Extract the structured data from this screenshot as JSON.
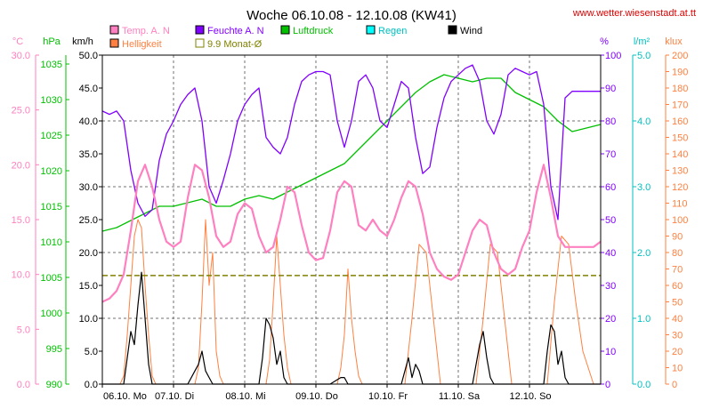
{
  "chart_data": {
    "type": "line",
    "title": "Woche 06.10.08 - 12.10.08 (KW41)",
    "source": "www.wetter.wiesenstadt.at.tt",
    "legend": [
      {
        "label": "Temp. A. N",
        "color": "#ff80c0",
        "marker": "filled"
      },
      {
        "label": "Feuchte A. N",
        "color": "#8000ff",
        "marker": "filled"
      },
      {
        "label": "Luftdruck",
        "color": "#00c000",
        "marker": "filled"
      },
      {
        "label": "Regen",
        "color": "#00ffff",
        "marker": "filled"
      },
      {
        "label": "Wind",
        "color": "#000000",
        "marker": "filled"
      },
      {
        "label": "Helligkeit",
        "color": "#ff8040",
        "marker": "filled"
      },
      {
        "label": "9.9 Monat-Ø",
        "color": "#808000",
        "marker": "outline"
      }
    ],
    "x_ticks": [
      "06.10. Mo",
      "07.10. Di",
      "08.10. Mi",
      "09.10. Do",
      "10.10. Fr",
      "11.10. Sa",
      "12.10. So"
    ],
    "axes": {
      "temp": {
        "unit": "°C",
        "color": "#ff80c0",
        "range": [
          0,
          30
        ],
        "ticks": [
          "0.0",
          "5.0",
          "10.0",
          "15.0",
          "20.0",
          "25.0",
          "30.0"
        ]
      },
      "pressure": {
        "unit": "hPa",
        "color": "#00c000",
        "range": [
          990,
          1036.25
        ],
        "ticks": [
          "990",
          "995",
          "1000",
          "1005",
          "1010",
          "1015",
          "1020",
          "1025",
          "1030",
          "1035"
        ]
      },
      "wind": {
        "unit": "km/h",
        "color": "#000000",
        "range": [
          0,
          50
        ],
        "ticks": [
          "0.0",
          "5.0",
          "10.0",
          "15.0",
          "20.0",
          "25.0",
          "30.0",
          "35.0",
          "40.0",
          "45.0",
          "50.0"
        ]
      },
      "humidity": {
        "unit": "%",
        "color": "#8000ff",
        "range": [
          0,
          100
        ],
        "ticks": [
          "0",
          "10",
          "20",
          "30",
          "40",
          "50",
          "60",
          "70",
          "80",
          "90",
          "100"
        ]
      },
      "rain": {
        "unit": "l/m²",
        "color": "#00c0c0",
        "range": [
          0,
          5
        ],
        "ticks": [
          "0.0",
          "1.0",
          "2.0",
          "3.0",
          "4.0",
          "5.0"
        ]
      },
      "brightness": {
        "unit": "klux",
        "color": "#ff8040",
        "range": [
          0,
          200
        ],
        "ticks": [
          "0",
          "10",
          "20",
          "30",
          "40",
          "50",
          "60",
          "70",
          "80",
          "90",
          "100",
          "110",
          "120",
          "130",
          "140",
          "150",
          "160",
          "170",
          "180",
          "190",
          "200"
        ]
      }
    },
    "x_range_days": [
      0,
      7
    ],
    "grid": true,
    "series": [
      {
        "name": "Temp. A. N",
        "axis": "temp",
        "color": "#ff80c0",
        "x": [
          0,
          0.1,
          0.2,
          0.3,
          0.4,
          0.5,
          0.6,
          0.7,
          0.8,
          0.9,
          1.0,
          1.1,
          1.2,
          1.3,
          1.4,
          1.5,
          1.6,
          1.7,
          1.8,
          1.9,
          2.0,
          2.1,
          2.2,
          2.3,
          2.4,
          2.5,
          2.6,
          2.7,
          2.8,
          2.9,
          3.0,
          3.1,
          3.2,
          3.3,
          3.4,
          3.5,
          3.6,
          3.7,
          3.8,
          3.9,
          4.0,
          4.1,
          4.2,
          4.3,
          4.4,
          4.5,
          4.6,
          4.7,
          4.8,
          4.9,
          5.0,
          5.1,
          5.2,
          5.3,
          5.4,
          5.5,
          5.6,
          5.7,
          5.8,
          5.9,
          6.0,
          6.1,
          6.2,
          6.3,
          6.4,
          6.5,
          6.6,
          6.7,
          6.8,
          6.9,
          7.0
        ],
        "y": [
          7.5,
          7.8,
          8.5,
          10.0,
          14.0,
          18.5,
          20.0,
          18.0,
          15.0,
          13.0,
          12.5,
          13.0,
          17.0,
          20.0,
          19.5,
          17.0,
          13.5,
          12.5,
          13.0,
          15.5,
          16.5,
          16.0,
          13.5,
          12.0,
          12.5,
          15.0,
          18.0,
          17.5,
          14.5,
          12.0,
          11.3,
          11.5,
          14.0,
          17.5,
          18.5,
          18.0,
          14.5,
          14.0,
          15.0,
          14.0,
          13.5,
          15.0,
          17.0,
          18.5,
          18.0,
          15.5,
          12.0,
          10.5,
          9.8,
          9.5,
          10.0,
          12.0,
          14.0,
          15.0,
          14.5,
          12.0,
          10.5,
          10.0,
          10.5,
          12.5,
          14.0,
          17.5,
          20.0,
          17.0,
          13.5,
          12.5,
          12.5,
          12.5,
          12.5,
          12.5,
          13.0
        ]
      },
      {
        "name": "Feuchte A. N",
        "axis": "humidity",
        "color": "#8000ff",
        "x": [
          0,
          0.1,
          0.2,
          0.3,
          0.4,
          0.5,
          0.6,
          0.7,
          0.8,
          0.9,
          1.0,
          1.1,
          1.2,
          1.3,
          1.4,
          1.5,
          1.6,
          1.7,
          1.8,
          1.9,
          2.0,
          2.1,
          2.2,
          2.3,
          2.4,
          2.5,
          2.6,
          2.7,
          2.8,
          2.9,
          3.0,
          3.1,
          3.2,
          3.3,
          3.4,
          3.5,
          3.6,
          3.7,
          3.8,
          3.9,
          4.0,
          4.1,
          4.2,
          4.3,
          4.4,
          4.5,
          4.6,
          4.7,
          4.8,
          4.9,
          5.0,
          5.1,
          5.2,
          5.3,
          5.4,
          5.5,
          5.6,
          5.7,
          5.8,
          5.9,
          6.0,
          6.1,
          6.2,
          6.3,
          6.4,
          6.5,
          6.6,
          6.7,
          6.8,
          6.9,
          7.0
        ],
        "y": [
          83,
          82,
          83,
          80,
          65,
          55,
          51,
          53,
          68,
          76,
          80,
          85,
          88,
          90,
          80,
          60,
          55,
          62,
          70,
          80,
          85,
          88,
          90,
          75,
          72,
          70,
          75,
          85,
          92,
          94,
          95,
          95,
          94,
          80,
          72,
          80,
          92,
          94,
          90,
          80,
          78,
          85,
          92,
          90,
          75,
          64,
          66,
          78,
          87,
          92,
          94,
          96,
          97,
          92,
          80,
          76,
          82,
          94,
          96,
          95,
          94,
          95,
          85,
          60,
          50,
          87,
          89,
          89,
          89,
          89,
          89
        ]
      },
      {
        "name": "Luftdruck",
        "axis": "pressure",
        "color": "#00c000",
        "x": [
          0,
          0.2,
          0.4,
          0.6,
          0.8,
          1.0,
          1.2,
          1.4,
          1.6,
          1.8,
          2.0,
          2.2,
          2.4,
          2.6,
          2.8,
          3.0,
          3.2,
          3.4,
          3.6,
          3.8,
          4.0,
          4.2,
          4.4,
          4.6,
          4.8,
          5.0,
          5.2,
          5.4,
          5.6,
          5.8,
          6.0,
          6.2,
          6.4,
          6.6,
          6.8,
          7.0
        ],
        "y": [
          1011.5,
          1012,
          1013,
          1014,
          1015,
          1015,
          1015.5,
          1016,
          1015,
          1015,
          1016,
          1016.5,
          1016,
          1017,
          1018,
          1019,
          1020,
          1021,
          1023,
          1025,
          1027,
          1029,
          1031,
          1032.5,
          1033.5,
          1033,
          1032.5,
          1033,
          1033,
          1031,
          1030,
          1029,
          1027,
          1025.5,
          1026,
          1026.5
        ]
      },
      {
        "name": "Wind",
        "axis": "wind",
        "color": "#000000",
        "x": [
          0,
          0.2,
          0.3,
          0.35,
          0.4,
          0.45,
          0.5,
          0.55,
          0.6,
          0.65,
          0.7,
          0.8,
          1.0,
          1.2,
          1.3,
          1.35,
          1.4,
          1.45,
          1.5,
          1.55,
          1.6,
          1.8,
          2.0,
          2.2,
          2.25,
          2.3,
          2.35,
          2.4,
          2.45,
          2.5,
          2.55,
          2.6,
          2.8,
          3.0,
          3.2,
          3.35,
          3.4,
          3.45,
          3.6,
          3.8,
          4.0,
          4.2,
          4.25,
          4.3,
          4.35,
          4.4,
          4.45,
          4.5,
          4.6,
          4.8,
          5.0,
          5.2,
          5.25,
          5.3,
          5.35,
          5.4,
          5.45,
          5.5,
          5.6,
          5.8,
          6.0,
          6.2,
          6.25,
          6.3,
          6.35,
          6.4,
          6.45,
          6.5,
          6.55,
          6.6,
          6.8,
          7.0
        ],
        "y": [
          0,
          0,
          0,
          4,
          8,
          6,
          12,
          17,
          10,
          3,
          0,
          0,
          0,
          0,
          2,
          3,
          5,
          2,
          1,
          0,
          0,
          0,
          0,
          0,
          4,
          10,
          9,
          7,
          3,
          5,
          1,
          0,
          0,
          0,
          0,
          1,
          1,
          0,
          0,
          0,
          0,
          0,
          2,
          4,
          1,
          3,
          2,
          0,
          0,
          0,
          0,
          0,
          3,
          6,
          8,
          4,
          1,
          0,
          0,
          0,
          0,
          0,
          5,
          9,
          8,
          3,
          5,
          1,
          0,
          0,
          0,
          0
        ]
      },
      {
        "name": "Helligkeit",
        "axis": "brightness",
        "color": "#ff8040",
        "x": [
          0,
          0.25,
          0.3,
          0.35,
          0.4,
          0.45,
          0.5,
          0.55,
          0.6,
          0.65,
          0.7,
          0.75,
          1.0,
          1.3,
          1.35,
          1.4,
          1.45,
          1.5,
          1.55,
          1.6,
          1.65,
          1.7,
          2.0,
          2.3,
          2.35,
          2.4,
          2.45,
          2.5,
          2.55,
          2.6,
          2.65,
          2.7,
          3.0,
          3.3,
          3.35,
          3.4,
          3.45,
          3.5,
          3.55,
          3.6,
          3.65,
          3.7,
          4.0,
          4.25,
          4.35,
          4.45,
          4.55,
          4.65,
          4.75,
          5.0,
          5.25,
          5.35,
          5.45,
          5.55,
          5.65,
          5.75,
          6.0,
          6.25,
          6.35,
          6.45,
          6.55,
          6.65,
          6.75,
          6.9,
          7.0
        ],
        "y": [
          0,
          0,
          5,
          30,
          60,
          90,
          100,
          95,
          60,
          30,
          5,
          0,
          0,
          0,
          10,
          50,
          100,
          60,
          80,
          20,
          5,
          0,
          0,
          0,
          15,
          50,
          90,
          60,
          30,
          10,
          0,
          0,
          0,
          0,
          10,
          30,
          70,
          40,
          20,
          5,
          0,
          0,
          0,
          0,
          40,
          85,
          80,
          40,
          0,
          0,
          0,
          40,
          85,
          80,
          40,
          0,
          0,
          0,
          50,
          90,
          85,
          50,
          20,
          0,
          0
        ]
      },
      {
        "name": "9.9 Monat-Ø",
        "axis": "temp",
        "color": "#808000",
        "dashed": true,
        "x": [
          0,
          7
        ],
        "y": [
          9.9,
          9.9
        ]
      }
    ]
  }
}
